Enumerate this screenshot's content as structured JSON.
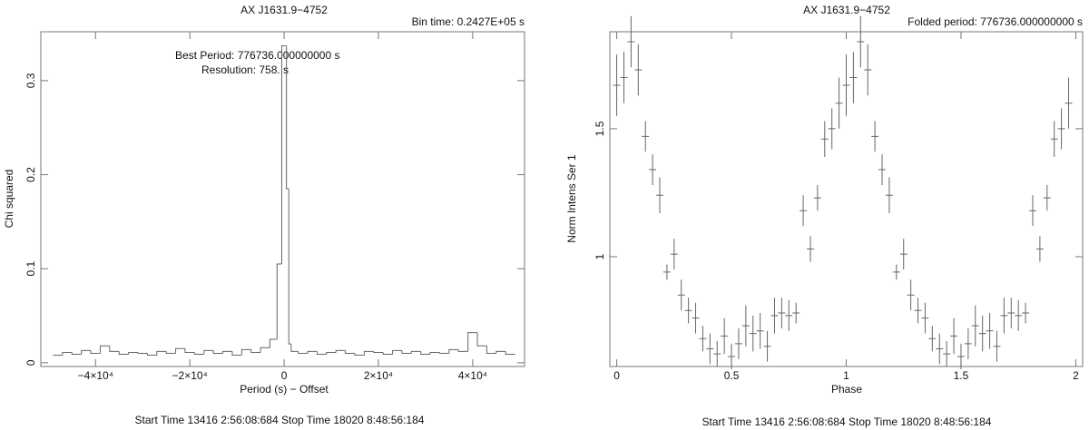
{
  "chart_data": [
    {
      "type": "histogram",
      "title": "AX J1631.9−4752",
      "bin_time": "Bin time:   0.2427E+05 s",
      "annotations": [
        "Best Period:  776736.000000000       s",
        "Resolution:          758.      s"
      ],
      "x_label": "Period (s) − Offset",
      "y_label": "Chi squared",
      "footer": "Start Time 13416  2:56:08:684    Stop Time 18020  8:48:56:184",
      "color": "#666666",
      "bins": [
        -49000,
        -47000,
        -45000,
        -43000,
        -41000,
        -39000,
        -37000,
        -35000,
        -33000,
        -31000,
        -29000,
        -27000,
        -25000,
        -23000,
        -21000,
        -19000,
        -17000,
        -15000,
        -13000,
        -11000,
        -9000,
        -7000,
        -5000,
        -3000,
        -1500,
        -500,
        500,
        1000,
        1500,
        3000,
        5000,
        7000,
        9000,
        11000,
        13000,
        15000,
        17000,
        19000,
        21000,
        23000,
        25000,
        27000,
        29000,
        31000,
        33000,
        35000,
        37000,
        39000,
        41000,
        43000,
        45000,
        47000,
        49000
      ],
      "values": [
        0.008,
        0.011,
        0.009,
        0.013,
        0.01,
        0.018,
        0.012,
        0.009,
        0.011,
        0.01,
        0.008,
        0.012,
        0.01,
        0.015,
        0.011,
        0.009,
        0.013,
        0.01,
        0.012,
        0.008,
        0.014,
        0.011,
        0.016,
        0.025,
        0.105,
        0.337,
        0.185,
        0.02,
        0.012,
        0.01,
        0.012,
        0.009,
        0.011,
        0.013,
        0.01,
        0.008,
        0.012,
        0.011,
        0.009,
        0.013,
        0.01,
        0.012,
        0.009,
        0.011,
        0.01,
        0.014,
        0.012,
        0.032,
        0.018,
        0.01,
        0.012,
        0.009
      ],
      "xlim": [
        -51600,
        51000
      ],
      "ylim": [
        -0.004,
        0.352
      ],
      "xticks": [
        {
          "value": -40000,
          "label": "−4×10⁴"
        },
        {
          "value": -20000,
          "label": "−2×10⁴"
        },
        0,
        {
          "value": 20000,
          "label": "2×10⁴"
        },
        {
          "value": 40000,
          "label": "4×10⁴"
        }
      ],
      "yticks": [
        0,
        0.1,
        0.2,
        0.3
      ]
    },
    {
      "type": "errorbar",
      "title": "AX J1631.9−4752",
      "folded_period": "Folded period: 776736.000000000 s",
      "x_label": "Phase",
      "y_label": "Norm Intens Ser 1",
      "footer": "Start Time 13416  2:56:08:684    Stop Time 18020  8:48:56:184",
      "color": "#666666",
      "x": [
        0,
        0.03125,
        0.0625,
        0.09375,
        0.125,
        0.15625,
        0.1875,
        0.21875,
        0.25,
        0.28125,
        0.3125,
        0.34375,
        0.375,
        0.40625,
        0.4375,
        0.46875,
        0.5,
        0.53125,
        0.5625,
        0.59375,
        0.625,
        0.65625,
        0.6875,
        0.71875,
        0.75,
        0.78125,
        0.8125,
        0.84375,
        0.875,
        0.90625,
        0.9375,
        0.96875,
        1,
        1.03125,
        1.0625,
        1.09375,
        1.125,
        1.15625,
        1.1875,
        1.21875,
        1.25,
        1.28125,
        1.3125,
        1.34375,
        1.375,
        1.40625,
        1.4375,
        1.46875,
        1.5,
        1.53125,
        1.5625,
        1.59375,
        1.625,
        1.65625,
        1.6875,
        1.71875,
        1.75,
        1.78125,
        1.8125,
        1.84375,
        1.875,
        1.90625,
        1.9375,
        1.96875
      ],
      "values": [
        1.67,
        1.7,
        1.84,
        1.73,
        1.47,
        1.34,
        1.24,
        0.94,
        1.01,
        0.85,
        0.79,
        0.76,
        0.68,
        0.64,
        0.62,
        0.69,
        0.61,
        0.66,
        0.73,
        0.7,
        0.71,
        0.65,
        0.77,
        0.78,
        0.77,
        0.78,
        1.18,
        1.03,
        1.23,
        1.46,
        1.5,
        1.6,
        1.67,
        1.7,
        1.84,
        1.73,
        1.47,
        1.34,
        1.24,
        0.94,
        1.01,
        0.85,
        0.79,
        0.76,
        0.68,
        0.64,
        0.62,
        0.69,
        0.61,
        0.66,
        0.73,
        0.7,
        0.71,
        0.65,
        0.77,
        0.78,
        0.77,
        0.78,
        1.18,
        1.03,
        1.23,
        1.46,
        1.5,
        1.6
      ],
      "errors": [
        0.12,
        0.1,
        0.1,
        0.1,
        0.06,
        0.06,
        0.07,
        0.03,
        0.06,
        0.06,
        0.05,
        0.06,
        0.05,
        0.06,
        0.05,
        0.07,
        0.05,
        0.06,
        0.08,
        0.07,
        0.07,
        0.06,
        0.07,
        0.06,
        0.06,
        0.04,
        0.06,
        0.05,
        0.05,
        0.07,
        0.08,
        0.1,
        0.12,
        0.1,
        0.1,
        0.1,
        0.06,
        0.06,
        0.07,
        0.03,
        0.06,
        0.06,
        0.05,
        0.06,
        0.05,
        0.06,
        0.05,
        0.07,
        0.05,
        0.06,
        0.08,
        0.07,
        0.07,
        0.06,
        0.07,
        0.06,
        0.06,
        0.04,
        0.06,
        0.05,
        0.05,
        0.07,
        0.08,
        0.1
      ],
      "xerr": 0.015625,
      "xlim": [
        -0.03,
        2.03
      ],
      "ylim": [
        0.571,
        1.879
      ],
      "xticks": [
        0,
        0.5,
        1,
        1.5,
        2
      ],
      "yticks": [
        1,
        1.5
      ]
    }
  ]
}
